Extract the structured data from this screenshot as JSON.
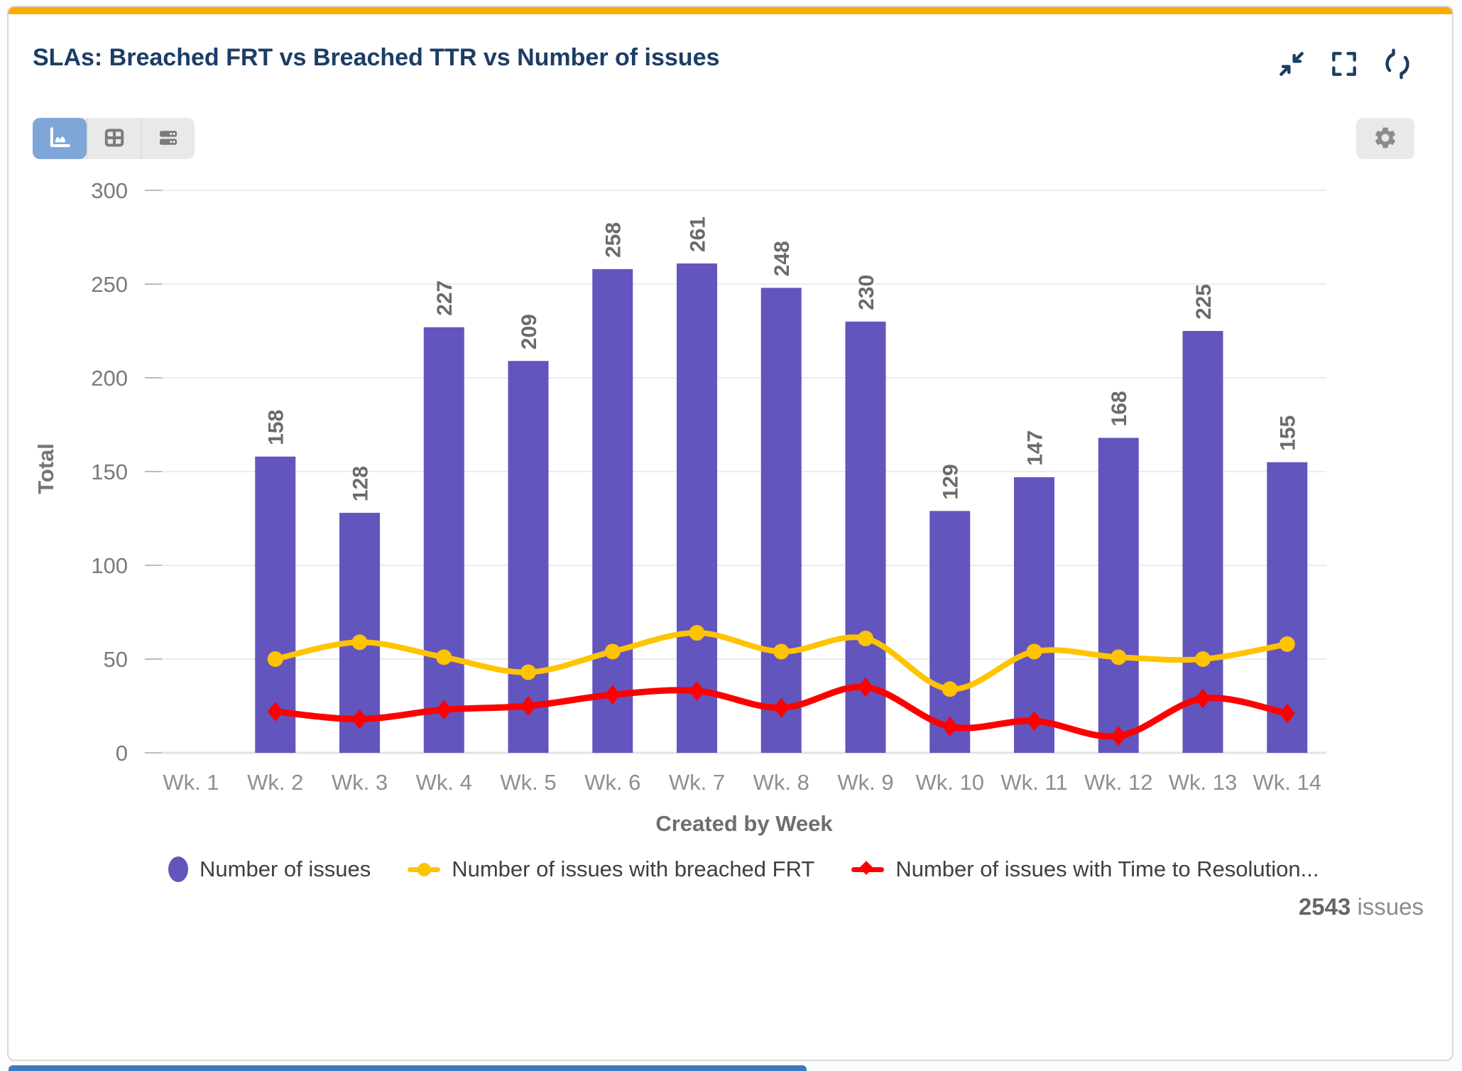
{
  "card": {
    "title": "SLAs: Breached FRT vs Breached TTR vs Number of issues",
    "accent_color": "#FFAB00",
    "title_color": "#1C3D66"
  },
  "window_controls": {
    "collapse": "collapse-widget",
    "fullscreen": "expand-fullscreen",
    "refresh": "refresh-widget"
  },
  "toolbar": {
    "views": [
      {
        "id": "chart-view",
        "active": true
      },
      {
        "id": "table-view",
        "active": false
      },
      {
        "id": "list-view",
        "active": false
      }
    ],
    "active_bg": "#7EA6D9",
    "inactive_bg": "#E9E9E9"
  },
  "settings": {
    "id": "widget-settings"
  },
  "footer": {
    "total_count": "2543",
    "total_label": "issues"
  },
  "chart_data": {
    "type": "bar",
    "subtype": "bar-line-combo",
    "title": "SLAs: Breached FRT vs Breached TTR vs Number of issues",
    "xlabel": "Created by Week",
    "ylabel": "Total",
    "ylim": [
      0,
      300
    ],
    "ytick_step": 50,
    "yticks": [
      0,
      50,
      100,
      150,
      200,
      250,
      300
    ],
    "grid": "horizontal",
    "legend_position": "bottom",
    "categories": [
      "Wk. 1",
      "Wk. 2",
      "Wk. 3",
      "Wk. 4",
      "Wk. 5",
      "Wk. 6",
      "Wk. 7",
      "Wk. 8",
      "Wk. 9",
      "Wk. 10",
      "Wk. 11",
      "Wk. 12",
      "Wk. 13",
      "Wk. 14"
    ],
    "series": [
      {
        "name": "Number of issues",
        "type": "bar",
        "color": "#6355BE",
        "values": [
          null,
          158,
          128,
          227,
          209,
          258,
          261,
          248,
          230,
          129,
          147,
          168,
          225,
          155
        ]
      },
      {
        "name": "Number of issues with breached FRT",
        "type": "line",
        "marker": "circle",
        "color": "#FFC400",
        "values": [
          null,
          50,
          59,
          51,
          43,
          54,
          64,
          54,
          61,
          34,
          54,
          51,
          50,
          58
        ]
      },
      {
        "name": "Number of issues with Time to Resolution...",
        "type": "line",
        "marker": "diamond",
        "color": "#FF0000",
        "values": [
          null,
          22,
          18,
          23,
          25,
          31,
          33,
          24,
          35,
          14,
          17,
          9,
          29,
          21
        ]
      }
    ]
  }
}
